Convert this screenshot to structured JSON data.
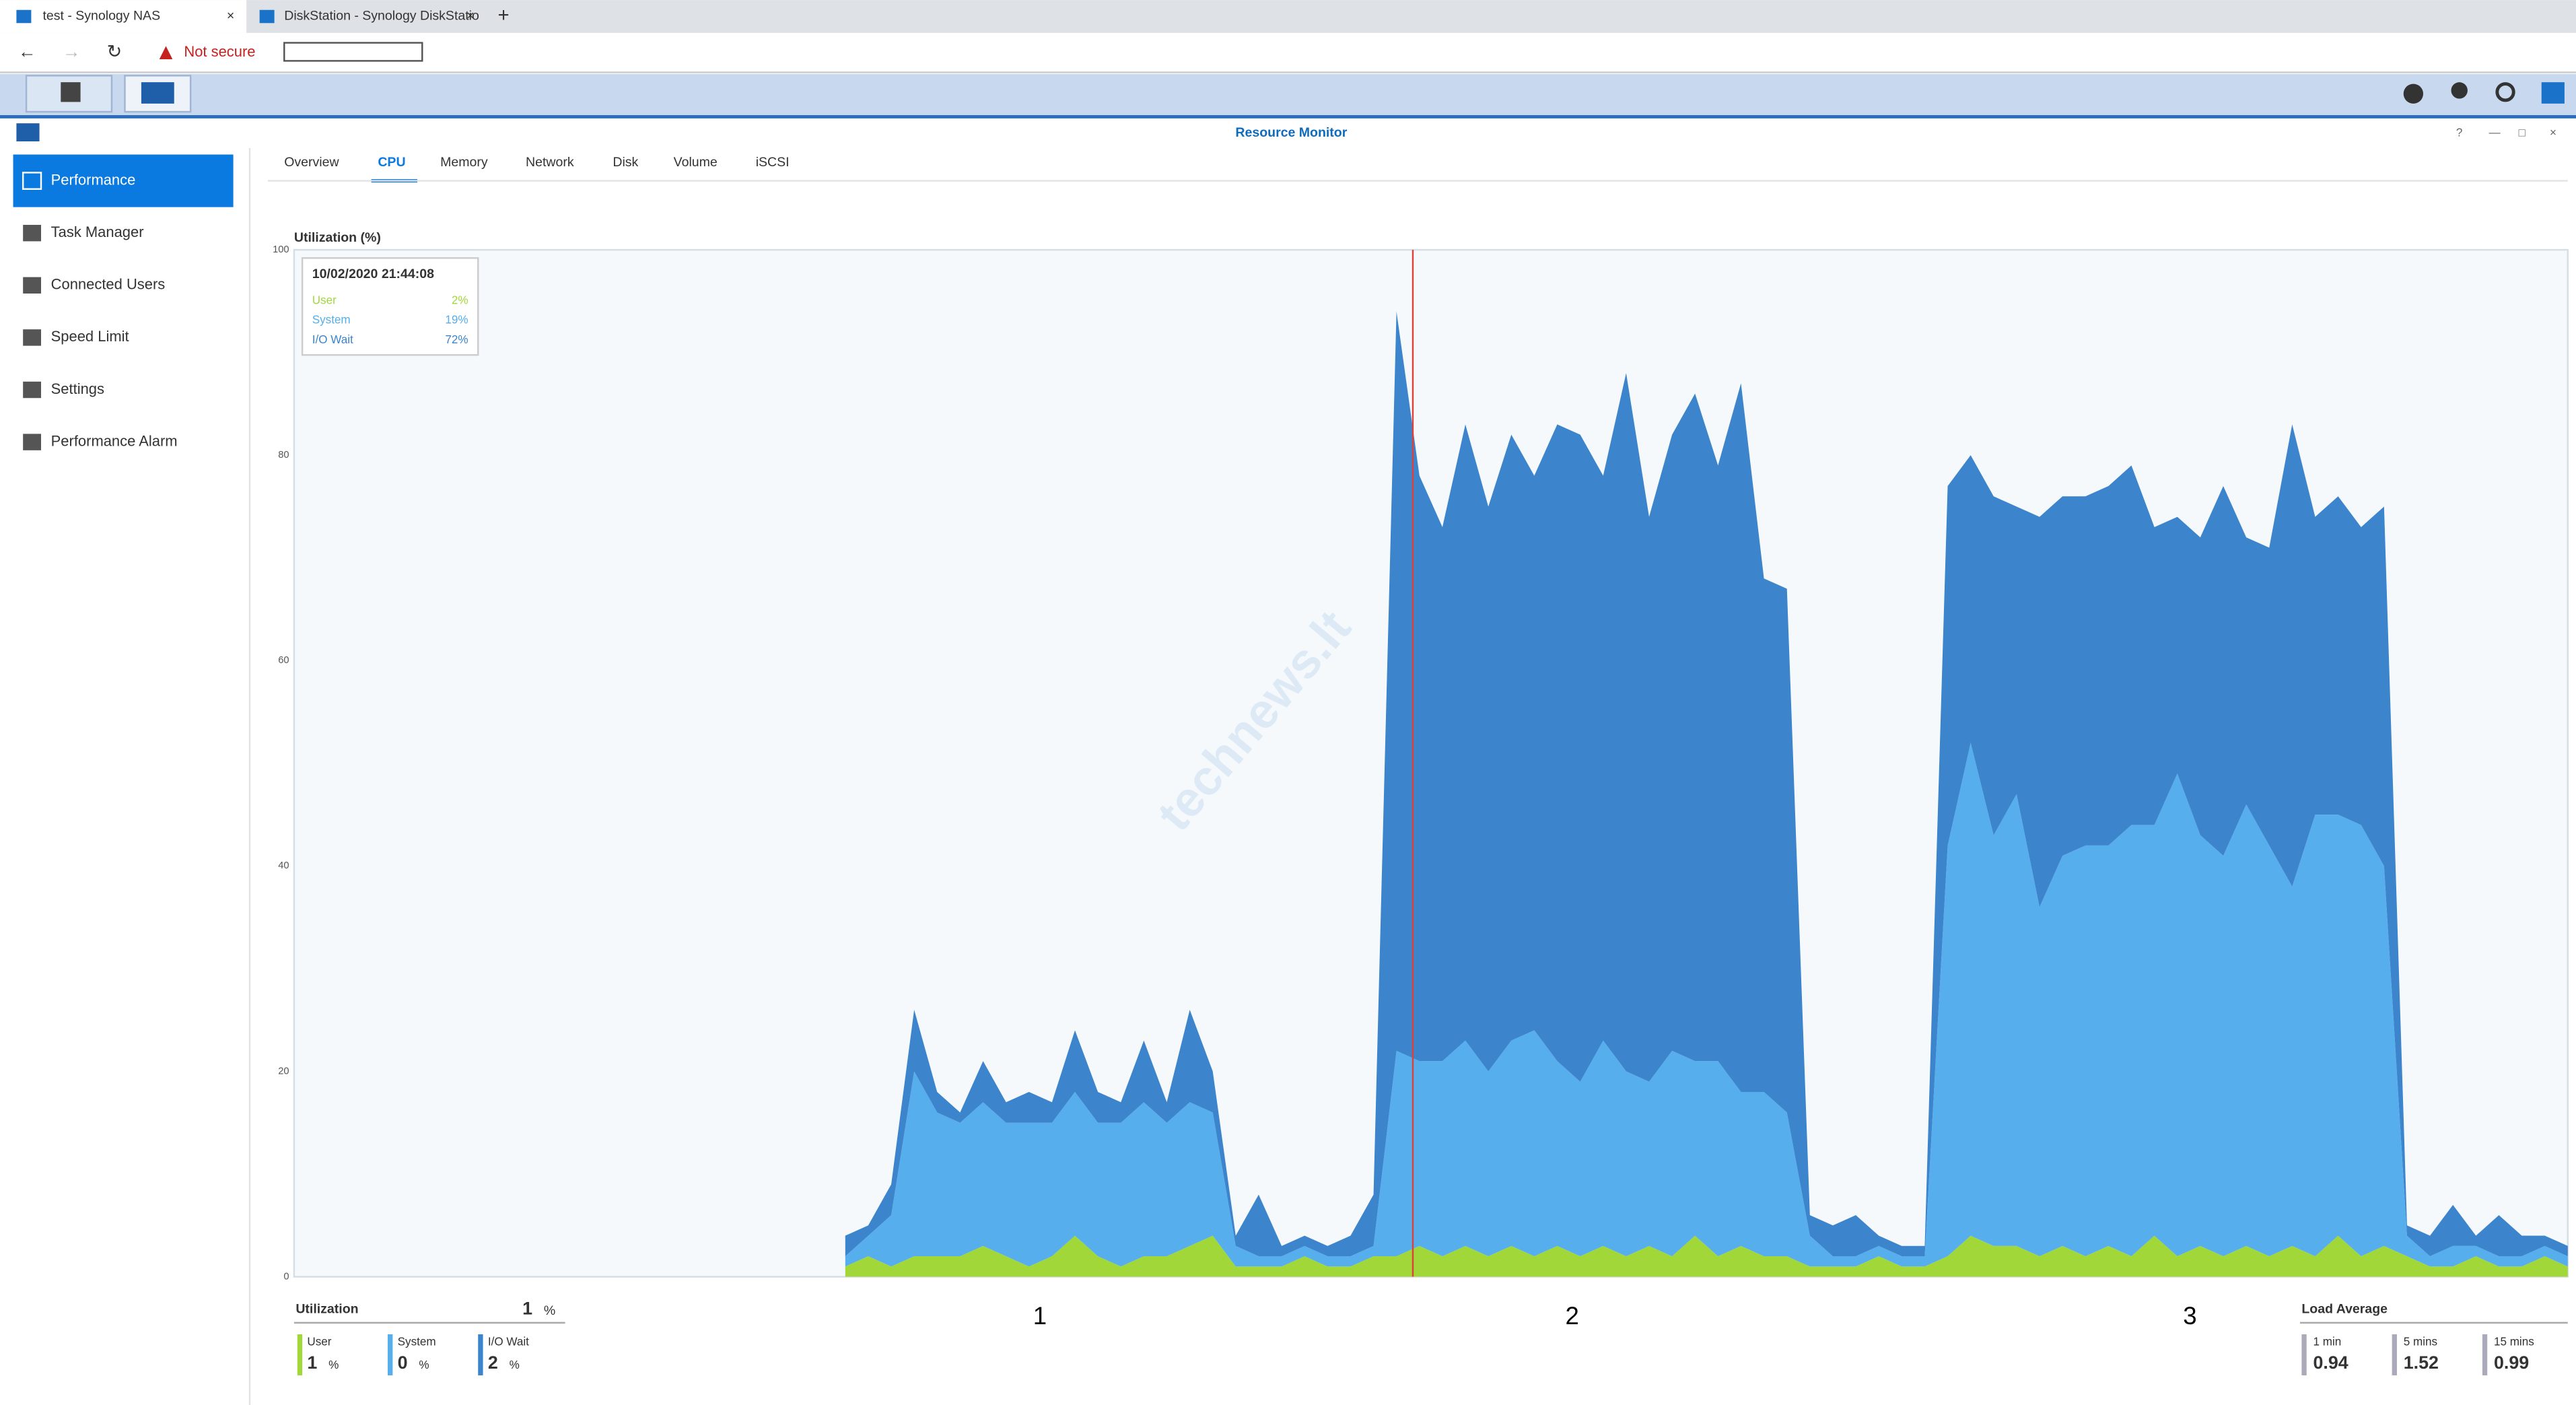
{
  "browser": {
    "tabs": [
      "test - Synology NAS",
      "DiskStation - Synology DiskStatio"
    ],
    "security": "Not secure"
  },
  "window": {
    "title": "Resource Monitor"
  },
  "sidebar": [
    "Performance",
    "Task Manager",
    "Connected Users",
    "Speed Limit",
    "Settings",
    "Performance Alarm"
  ],
  "tabs": [
    "Overview",
    "CPU",
    "Memory",
    "Network",
    "Disk",
    "Volume",
    "iSCSI"
  ],
  "watermark": "technews.lt",
  "chart_data": {
    "type": "area",
    "stacked": true,
    "ylabel": "Utilization (%)",
    "ylim": [
      0,
      100
    ],
    "yticks": [
      0,
      20,
      40,
      60,
      80,
      100
    ],
    "grid": true,
    "series": [
      {
        "name": "User",
        "color": "#a2d73a",
        "values": [
          null,
          null,
          null,
          null,
          null,
          null,
          null,
          null,
          null,
          null,
          null,
          null,
          null,
          null,
          null,
          null,
          null,
          null,
          null,
          null,
          null,
          null,
          null,
          null,
          1,
          2,
          1,
          2,
          2,
          2,
          3,
          2,
          1,
          2,
          4,
          2,
          1,
          2,
          2,
          3,
          4,
          1,
          1,
          1,
          2,
          1,
          1,
          2,
          2,
          3,
          2,
          3,
          2,
          3,
          2,
          3,
          2,
          3,
          2,
          3,
          2,
          4,
          2,
          3,
          2,
          2,
          1,
          1,
          1,
          2,
          1,
          1,
          2,
          4,
          3,
          3,
          2,
          3,
          2,
          3,
          2,
          4,
          2,
          3,
          2,
          3,
          2,
          3,
          2,
          4,
          2,
          3,
          2,
          1,
          1,
          2,
          1,
          1,
          2,
          1
        ]
      },
      {
        "name": "System",
        "color": "#56aeec",
        "values": [
          null,
          null,
          null,
          null,
          null,
          null,
          null,
          null,
          null,
          null,
          null,
          null,
          null,
          null,
          null,
          null,
          null,
          null,
          null,
          null,
          null,
          null,
          null,
          null,
          1,
          2,
          5,
          18,
          14,
          13,
          14,
          13,
          14,
          13,
          14,
          13,
          14,
          15,
          13,
          14,
          12,
          2,
          1,
          1,
          1,
          1,
          1,
          1,
          20,
          18,
          19,
          20,
          18,
          20,
          22,
          18,
          17,
          20,
          18,
          16,
          20,
          17,
          19,
          15,
          16,
          14,
          3,
          1,
          1,
          1,
          1,
          1,
          40,
          48,
          40,
          44,
          34,
          38,
          40,
          39,
          42,
          40,
          47,
          40,
          39,
          43,
          40,
          35,
          43,
          41,
          42,
          37,
          2,
          1,
          2,
          1,
          1,
          1,
          1,
          1
        ]
      },
      {
        "name": "I/O Wait",
        "color": "#3c84cb",
        "values": [
          null,
          null,
          null,
          null,
          null,
          null,
          null,
          null,
          null,
          null,
          null,
          null,
          null,
          null,
          null,
          null,
          null,
          null,
          null,
          null,
          null,
          null,
          null,
          null,
          2,
          1,
          3,
          6,
          2,
          1,
          4,
          2,
          3,
          2,
          6,
          3,
          2,
          6,
          2,
          9,
          4,
          1,
          6,
          1,
          1,
          1,
          2,
          5,
          72,
          57,
          52,
          60,
          55,
          59,
          54,
          62,
          63,
          55,
          68,
          55,
          60,
          65,
          58,
          69,
          50,
          51,
          2,
          3,
          4,
          1,
          1,
          1,
          35,
          28,
          33,
          28,
          38,
          35,
          34,
          35,
          35,
          29,
          25,
          29,
          36,
          26,
          29,
          45,
          29,
          31,
          29,
          35,
          1,
          2,
          4,
          1,
          4,
          2,
          1,
          1
        ]
      }
    ],
    "tooltip": {
      "time": "10/02/2020 21:44:08",
      "rows": [
        {
          "name": "User",
          "value": "2%"
        },
        {
          "name": "System",
          "value": "19%"
        },
        {
          "name": "I/O Wait",
          "value": "72%"
        }
      ]
    },
    "annotations": [
      "1",
      "2",
      "3"
    ]
  },
  "utilization": {
    "title": "Utilization",
    "total": "1",
    "unit": "%",
    "items": [
      {
        "name": "User",
        "value": "1"
      },
      {
        "name": "System",
        "value": "0"
      },
      {
        "name": "I/O Wait",
        "value": "2"
      }
    ]
  },
  "load_average": {
    "title": "Load Average",
    "items": [
      {
        "name": "1 min",
        "value": "0.94"
      },
      {
        "name": "5 mins",
        "value": "1.52"
      },
      {
        "name": "15 mins",
        "value": "0.99"
      }
    ]
  }
}
